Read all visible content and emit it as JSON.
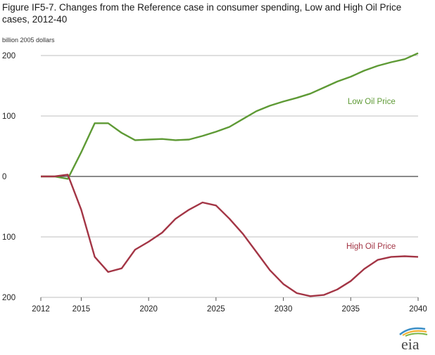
{
  "title": "Figure IF5-7. Changes from the Reference case in consumer spending, Low and High Oil Price cases, 2012-40",
  "unit_label": "billion 2005 dollars",
  "logo_text": "eia",
  "colors": {
    "low": "#5e9a35",
    "high": "#a33545",
    "grid": "#bfbfbf",
    "zero": "#444444"
  },
  "chart_data": {
    "type": "line",
    "title": "Figure IF5-7. Changes from the Reference case in consumer spending, Low and High Oil Price cases, 2012-40",
    "xlabel": "",
    "ylabel": "billion 2005 dollars",
    "xlim": [
      2012,
      2040
    ],
    "ylim": [
      -200,
      200
    ],
    "x_ticks": [
      2012,
      2015,
      2020,
      2025,
      2030,
      2035,
      2040
    ],
    "y_ticks": [
      200,
      100,
      0,
      -100,
      -200
    ],
    "y_tick_labels": [
      "200",
      "100",
      "0",
      "100",
      "200"
    ],
    "x": [
      2012,
      2013,
      2014,
      2015,
      2016,
      2017,
      2018,
      2019,
      2020,
      2021,
      2022,
      2023,
      2024,
      2025,
      2026,
      2027,
      2028,
      2029,
      2030,
      2031,
      2032,
      2033,
      2034,
      2035,
      2036,
      2037,
      2038,
      2039,
      2040
    ],
    "series": [
      {
        "name": "Low Oil Price",
        "label": "Low Oil Price",
        "values": [
          0,
          0,
          -4,
          40,
          88,
          88,
          72,
          60,
          61,
          62,
          60,
          61,
          67,
          74,
          82,
          95,
          108,
          117,
          124,
          130,
          137,
          147,
          157,
          165,
          175,
          183,
          189,
          194,
          204
        ]
      },
      {
        "name": "High Oil Price",
        "label": "High Oil Price",
        "values": [
          0,
          0,
          3,
          -55,
          -133,
          -158,
          -152,
          -121,
          -108,
          -93,
          -70,
          -55,
          -43,
          -48,
          -70,
          -95,
          -125,
          -155,
          -178,
          -193,
          -198,
          -196,
          -187,
          -173,
          -153,
          -138,
          -133,
          -132,
          -133
        ]
      }
    ]
  }
}
